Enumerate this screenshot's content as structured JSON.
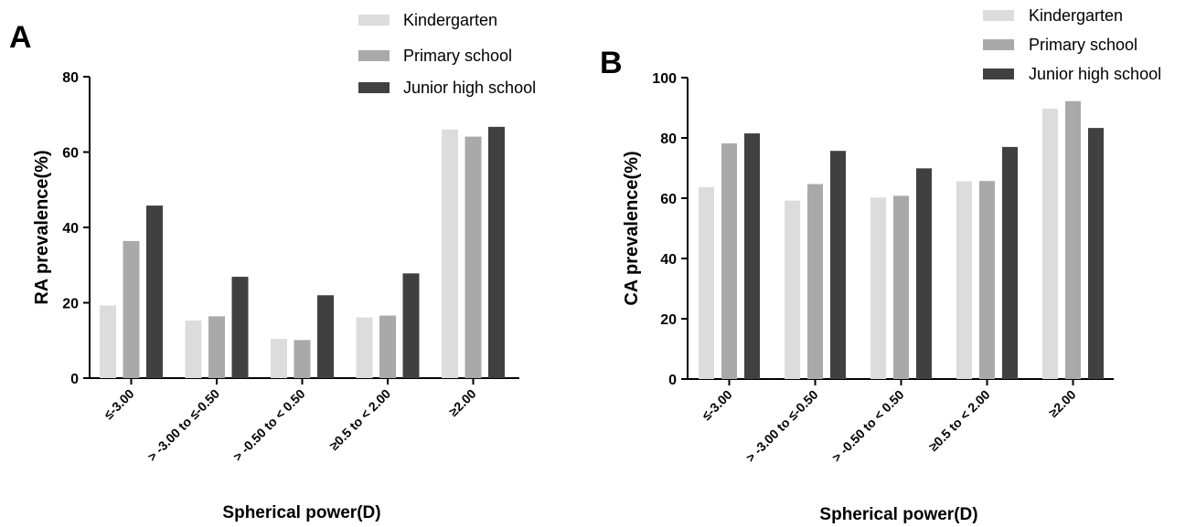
{
  "chart_data": [
    {
      "panel_label": "A",
      "type": "bar",
      "xlabel": "Spherical power(D)",
      "ylabel": "RA prevalence(%)",
      "ylim": [
        0,
        80
      ],
      "yticks": [
        0,
        20,
        40,
        60,
        80
      ],
      "categories": [
        "≤-3.00",
        "> -3.00 to ≤-0.50",
        "> -0.50 to < 0.50",
        "≥0.5 to < 2.00",
        "≥2.00"
      ],
      "series": [
        {
          "name": "Kindergarten",
          "color": "#dcdcdc",
          "values": [
            19.3,
            15.3,
            10.4,
            16.1,
            66.0
          ]
        },
        {
          "name": "Primary school",
          "color": "#a9a9a9",
          "values": [
            36.4,
            16.4,
            10.1,
            16.6,
            64.1
          ]
        },
        {
          "name": "Junior high school",
          "color": "#404040",
          "values": [
            45.8,
            26.9,
            22.0,
            27.8,
            66.7
          ]
        }
      ],
      "legend_position": "top-right",
      "grid": false
    },
    {
      "panel_label": "B",
      "type": "bar",
      "xlabel": "Spherical power(D)",
      "ylabel": "CA prevalence(%)",
      "ylim": [
        0,
        100
      ],
      "yticks": [
        0,
        20,
        40,
        60,
        80,
        100
      ],
      "categories": [
        "≤-3.00",
        "> -3.00 to ≤-0.50",
        "> -0.50 to < 0.50",
        "≥0.5 to < 2.00",
        "≥2.00"
      ],
      "series": [
        {
          "name": "Kindergarten",
          "color": "#dcdcdc",
          "values": [
            63.7,
            59.2,
            60.2,
            65.6,
            89.7
          ]
        },
        {
          "name": "Primary school",
          "color": "#a9a9a9",
          "values": [
            78.2,
            64.7,
            60.8,
            65.7,
            92.2
          ]
        },
        {
          "name": "Junior high school",
          "color": "#404040",
          "values": [
            81.5,
            75.7,
            69.9,
            77.0,
            83.3
          ]
        }
      ],
      "legend_position": "top-right",
      "grid": false
    }
  ]
}
